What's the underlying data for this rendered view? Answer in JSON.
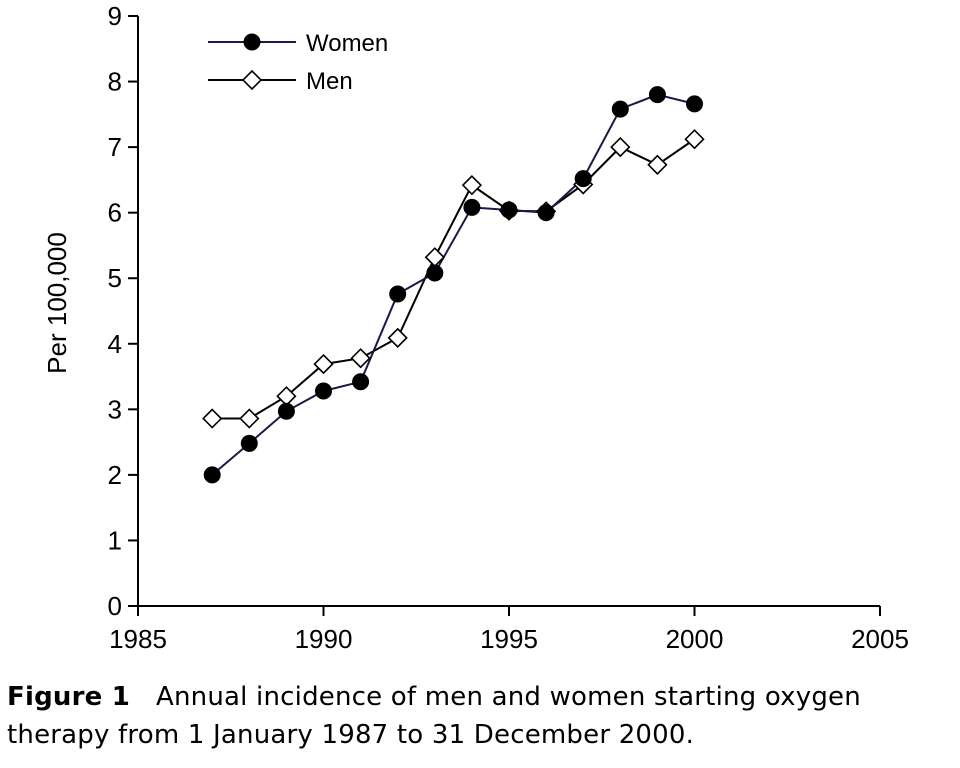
{
  "chart_data": {
    "type": "line",
    "ylabel": "Per 100,000",
    "xlabel": "",
    "xlim": [
      1985,
      2005
    ],
    "ylim": [
      0,
      9
    ],
    "x_ticks": [
      1985,
      1990,
      1995,
      2000,
      2005
    ],
    "y_ticks": [
      0,
      1,
      2,
      3,
      4,
      5,
      6,
      7,
      8,
      9
    ],
    "grid": false,
    "legend_position": "top-left",
    "series": [
      {
        "name": "Women",
        "marker": "filled-circle",
        "color": "#1a1a4a",
        "x": [
          1987,
          1988,
          1989,
          1990,
          1991,
          1992,
          1993,
          1994,
          1995,
          1996,
          1997,
          1998,
          1999,
          2000
        ],
        "y": [
          2.0,
          2.48,
          2.97,
          3.28,
          3.42,
          4.76,
          5.08,
          6.08,
          6.04,
          6.0,
          6.52,
          7.58,
          7.8,
          7.66
        ]
      },
      {
        "name": "Men",
        "marker": "open-diamond",
        "color": "#000000",
        "x": [
          1987,
          1988,
          1989,
          1990,
          1991,
          1992,
          1993,
          1994,
          1995,
          1996,
          1997,
          1998,
          1999,
          2000
        ],
        "y": [
          2.86,
          2.86,
          3.2,
          3.69,
          3.78,
          4.09,
          5.32,
          6.42,
          6.03,
          6.02,
          6.43,
          7.0,
          6.73,
          7.12
        ]
      }
    ]
  },
  "caption": {
    "label": "Figure 1",
    "text": "Annual incidence of men and women starting oxygen therapy from 1 January 1987 to 31 December 2000."
  }
}
